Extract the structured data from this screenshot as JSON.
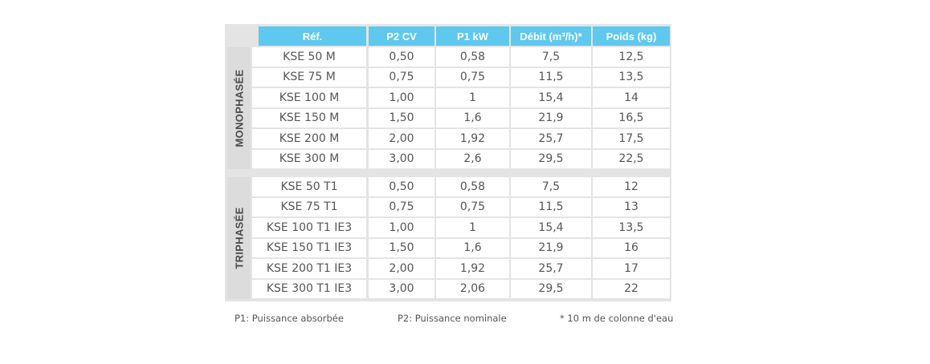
{
  "table": {
    "headers": [
      "Réf.",
      "P2 CV",
      "P1 kW",
      "Débit (m³/h)*",
      "Poids (kg)"
    ],
    "groups": [
      {
        "label": "MONOPHASÉE",
        "rows": [
          [
            "KSE 50 M",
            "0,50",
            "0,58",
            "7,5",
            "12,5"
          ],
          [
            "KSE 75 M",
            "0,75",
            "0,75",
            "11,5",
            "13,5"
          ],
          [
            "KSE 100 M",
            "1,00",
            "1",
            "15,4",
            "14"
          ],
          [
            "KSE 150 M",
            "1,50",
            "1,6",
            "21,9",
            "16,5"
          ],
          [
            "KSE 200 M",
            "2,00",
            "1,92",
            "25,7",
            "17,5"
          ],
          [
            "KSE 300 M",
            "3,00",
            "2,6",
            "29,5",
            "22,5"
          ]
        ]
      },
      {
        "label": "TRIPHASÉE",
        "rows": [
          [
            "KSE 50 T1",
            "0,50",
            "0,58",
            "7,5",
            "12"
          ],
          [
            "KSE 75 T1",
            "0,75",
            "0,75",
            "11,5",
            "13"
          ],
          [
            "KSE 100 T1 IE3",
            "1,00",
            "1",
            "15,4",
            "13,5"
          ],
          [
            "KSE 150 T1 IE3",
            "1,50",
            "1,6",
            "21,9",
            "16"
          ],
          [
            "KSE 200 T1 IE3",
            "2,00",
            "1,92",
            "25,7",
            "17"
          ],
          [
            "KSE 300 T1 IE3",
            "3,00",
            "2,06",
            "29,5",
            "22"
          ]
        ]
      }
    ],
    "footnotes": [
      "P1: Puissance absorbée",
      "P2: Puissance nominale",
      "* 10 m de colonne d'eau"
    ]
  }
}
